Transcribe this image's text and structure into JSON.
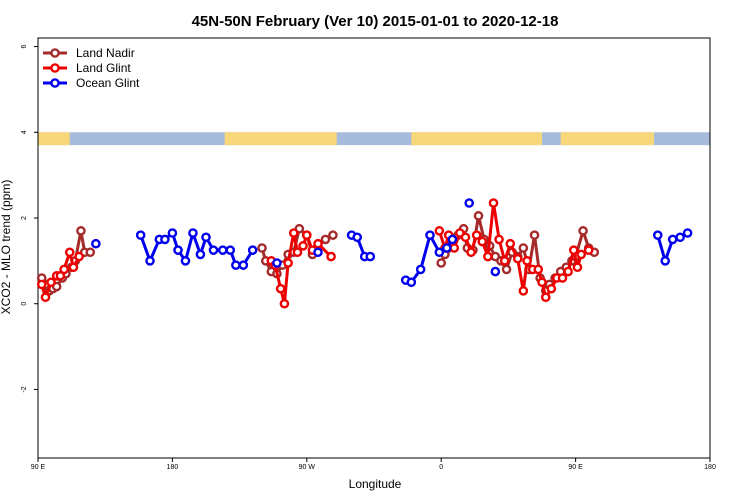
{
  "chart_data": {
    "type": "line",
    "title": "45N-50N February (Ver 10)   2015-01-01 to 2020-12-18",
    "xlabel": "Longitude",
    "ylabel": "XCO2 - MLO trend (ppm)",
    "xlim": [
      90,
      450
    ],
    "ylim": [
      -3.6,
      6.2
    ],
    "x_ticks": [
      {
        "value": 90,
        "label": "90 E"
      },
      {
        "value": 162,
        "label": "180"
      },
      {
        "value": 234,
        "label": "90 W"
      },
      {
        "value": 306,
        "label": "0"
      },
      {
        "value": 378,
        "label": "90 E"
      },
      {
        "value": 450,
        "label": "180"
      }
    ],
    "y_ticks": [
      {
        "value": -2,
        "label": "-2"
      },
      {
        "value": 0,
        "label": "0"
      },
      {
        "value": 2,
        "label": "2"
      },
      {
        "value": 4,
        "label": "4"
      },
      {
        "value": 6,
        "label": "6"
      }
    ],
    "grid": false,
    "legend_position": "top-left",
    "land_band": {
      "y_range": [
        3.7,
        4.0
      ],
      "ocean_color": "#a7bbdc",
      "land_color": "#f8d67a",
      "land_segments": [
        [
          90,
          107
        ],
        [
          190,
          250
        ],
        [
          290,
          360
        ],
        [
          370,
          420
        ]
      ]
    },
    "series": [
      {
        "name": "Land Nadir",
        "color": "#a52a2a",
        "segments": [
          [
            [
              92,
              0.6
            ],
            [
              94,
              0.45
            ],
            [
              96,
              0.3
            ],
            [
              98,
              0.35
            ],
            [
              100,
              0.4
            ],
            [
              103,
              0.6
            ],
            [
              105,
              0.7
            ],
            [
              108,
              0.85
            ],
            [
              110,
              1.0
            ],
            [
              113,
              1.7
            ],
            [
              115,
              1.2
            ],
            [
              118,
              1.2
            ]
          ],
          [
            [
              210,
              1.3
            ],
            [
              212,
              1.0
            ],
            [
              215,
              0.75
            ],
            [
              218,
              0.7
            ],
            [
              221,
              0.9
            ],
            [
              224,
              1.15
            ],
            [
              227,
              1.2
            ],
            [
              230,
              1.75
            ],
            [
              234,
              1.6
            ],
            [
              237,
              1.15
            ],
            [
              240,
              1.35
            ],
            [
              244,
              1.5
            ],
            [
              248,
              1.6
            ]
          ],
          [
            [
              306,
              0.95
            ],
            [
              308,
              1.15
            ],
            [
              310,
              1.3
            ],
            [
              312,
              1.4
            ],
            [
              315,
              1.6
            ],
            [
              318,
              1.75
            ],
            [
              320,
              1.3
            ],
            [
              323,
              1.25
            ],
            [
              326,
              2.05
            ],
            [
              329,
              1.5
            ],
            [
              332,
              1.35
            ],
            [
              335,
              1.1
            ],
            [
              338,
              1.0
            ],
            [
              341,
              0.8
            ],
            [
              344,
              1.2
            ],
            [
              347,
              1.1
            ],
            [
              350,
              1.3
            ],
            [
              353,
              0.8
            ],
            [
              356,
              1.6
            ],
            [
              359,
              0.6
            ],
            [
              362,
              0.3
            ],
            [
              364,
              0.45
            ],
            [
              367,
              0.6
            ],
            [
              370,
              0.75
            ],
            [
              373,
              0.85
            ],
            [
              376,
              1.0
            ],
            [
              378,
              1.1
            ],
            [
              382,
              1.7
            ],
            [
              385,
              1.3
            ],
            [
              388,
              1.2
            ]
          ]
        ]
      },
      {
        "name": "Land Glint",
        "color": "#ee0000",
        "segments": [
          [
            [
              92,
              0.45
            ],
            [
              94,
              0.15
            ],
            [
              97,
              0.5
            ],
            [
              100,
              0.65
            ],
            [
              102,
              0.65
            ],
            [
              104,
              0.8
            ],
            [
              107,
              1.2
            ],
            [
              109,
              0.85
            ],
            [
              112,
              1.1
            ]
          ],
          [
            [
              215,
              1.0
            ],
            [
              217,
              0.9
            ],
            [
              220,
              0.35
            ],
            [
              222,
              0.0
            ],
            [
              224,
              0.95
            ],
            [
              227,
              1.65
            ],
            [
              229,
              1.2
            ],
            [
              232,
              1.35
            ],
            [
              234,
              1.6
            ],
            [
              237,
              1.25
            ],
            [
              240,
              1.4
            ],
            [
              247,
              1.1
            ]
          ],
          [
            [
              305,
              1.7
            ],
            [
              308,
              1.3
            ],
            [
              310,
              1.6
            ],
            [
              313,
              1.3
            ],
            [
              316,
              1.65
            ],
            [
              319,
              1.55
            ],
            [
              322,
              1.2
            ],
            [
              325,
              1.6
            ],
            [
              328,
              1.45
            ],
            [
              331,
              1.1
            ],
            [
              334,
              2.35
            ],
            [
              337,
              1.5
            ],
            [
              340,
              1.0
            ],
            [
              343,
              1.4
            ],
            [
              347,
              1.05
            ],
            [
              350,
              0.3
            ],
            [
              352,
              1.0
            ],
            [
              355,
              0.8
            ],
            [
              358,
              0.8
            ],
            [
              360,
              0.5
            ],
            [
              362,
              0.15
            ],
            [
              365,
              0.35
            ],
            [
              368,
              0.6
            ],
            [
              371,
              0.6
            ],
            [
              374,
              0.75
            ],
            [
              377,
              1.25
            ],
            [
              379,
              0.85
            ],
            [
              381,
              1.15
            ],
            [
              385,
              1.25
            ]
          ]
        ]
      },
      {
        "name": "Ocean Glint",
        "color": "#0000ee",
        "segments": [
          [
            [
              121,
              1.4
            ]
          ],
          [
            [
              145,
              1.6
            ],
            [
              150,
              1.0
            ],
            [
              155,
              1.5
            ],
            [
              158,
              1.5
            ],
            [
              162,
              1.65
            ],
            [
              165,
              1.25
            ],
            [
              169,
              1.0
            ],
            [
              173,
              1.65
            ],
            [
              177,
              1.15
            ],
            [
              180,
              1.55
            ],
            [
              184,
              1.25
            ],
            [
              189,
              1.25
            ],
            [
              193,
              1.25
            ],
            [
              196,
              0.9
            ],
            [
              200,
              0.9
            ],
            [
              205,
              1.25
            ]
          ],
          [
            [
              218,
              0.95
            ]
          ],
          [
            [
              240,
              1.2
            ]
          ],
          [
            [
              258,
              1.6
            ],
            [
              261,
              1.55
            ],
            [
              265,
              1.1
            ],
            [
              268,
              1.1
            ]
          ],
          [
            [
              287,
              0.55
            ],
            [
              290,
              0.5
            ],
            [
              295,
              0.8
            ],
            [
              300,
              1.6
            ],
            [
              305,
              1.2
            ],
            [
              309,
              1.3
            ],
            [
              312,
              1.5
            ]
          ],
          [
            [
              321,
              2.35
            ]
          ],
          [
            [
              335,
              0.75
            ]
          ],
          [
            [
              422,
              1.6
            ],
            [
              426,
              1.0
            ],
            [
              430,
              1.5
            ],
            [
              434,
              1.55
            ],
            [
              438,
              1.65
            ]
          ]
        ]
      }
    ]
  }
}
